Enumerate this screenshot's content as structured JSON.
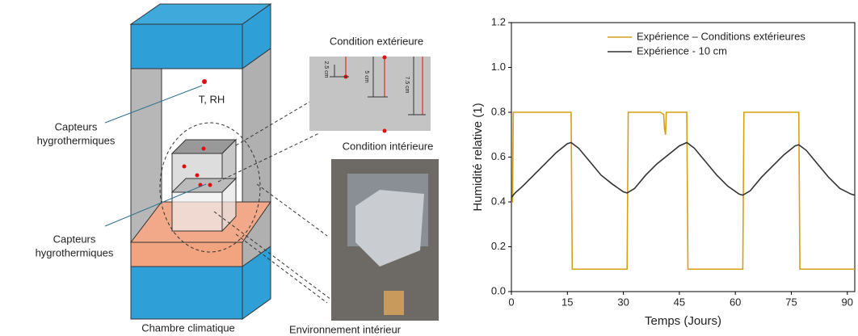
{
  "diagram": {
    "sensor_label_top": [
      "Capteurs",
      "hygrothermiques"
    ],
    "sensor_label_bottom": [
      "Capteurs",
      "hygrothermiques"
    ],
    "t_rh": "T, RH",
    "chamber": "Chambre climatique",
    "interior_env": "Environnement intérieur",
    "inset": {
      "exterior": "Condition extérieure",
      "interior": "Condition intérieure",
      "depths": [
        "2.5 cm",
        "5 cm",
        "7.5 cm"
      ]
    }
  },
  "chart_data": {
    "type": "line",
    "xlabel": "Temps (Jours)",
    "ylabel": "Humidité relative (1)",
    "xlim": [
      0,
      92
    ],
    "xticks": [
      0,
      15,
      30,
      45,
      60,
      75,
      90
    ],
    "ylim": [
      0,
      1.2
    ],
    "yticks": [
      {
        "value": 0,
        "label": "0.0"
      },
      0.2,
      0.4,
      0.6,
      0.8,
      {
        "value": 1,
        "label": "1.0"
      },
      1.2
    ],
    "legend": "upper right",
    "series": [
      {
        "name": "Expérience – Conditions extérieures",
        "color": "#d4a017",
        "x": [
          0,
          0.3,
          0.5,
          16,
          16.3,
          31,
          31.3,
          40,
          40.8,
          41,
          41.3,
          41.5,
          42,
          47,
          47.3,
          62,
          62.3,
          77,
          77.3,
          92
        ],
        "values": [
          0.4,
          0.4,
          0.8,
          0.8,
          0.1,
          0.1,
          0.8,
          0.8,
          0.79,
          0.73,
          0.7,
          0.8,
          0.8,
          0.8,
          0.1,
          0.1,
          0.8,
          0.8,
          0.1,
          0.1
        ]
      },
      {
        "name": "Expérience - 10 cm",
        "color": "#333333",
        "x": [
          0,
          1,
          3,
          6,
          9,
          12,
          15,
          16,
          18,
          21,
          24,
          27,
          30,
          31,
          33,
          36,
          39,
          42,
          45,
          47,
          49,
          52,
          55,
          58,
          61,
          62,
          64,
          67,
          70,
          73,
          76,
          77,
          79,
          82,
          85,
          88,
          91,
          92
        ],
        "values": [
          0.42,
          0.44,
          0.47,
          0.52,
          0.57,
          0.62,
          0.66,
          0.665,
          0.64,
          0.58,
          0.52,
          0.48,
          0.445,
          0.44,
          0.46,
          0.52,
          0.57,
          0.61,
          0.65,
          0.665,
          0.64,
          0.58,
          0.52,
          0.47,
          0.435,
          0.43,
          0.45,
          0.51,
          0.56,
          0.61,
          0.65,
          0.655,
          0.63,
          0.57,
          0.51,
          0.46,
          0.435,
          0.43
        ]
      }
    ]
  }
}
